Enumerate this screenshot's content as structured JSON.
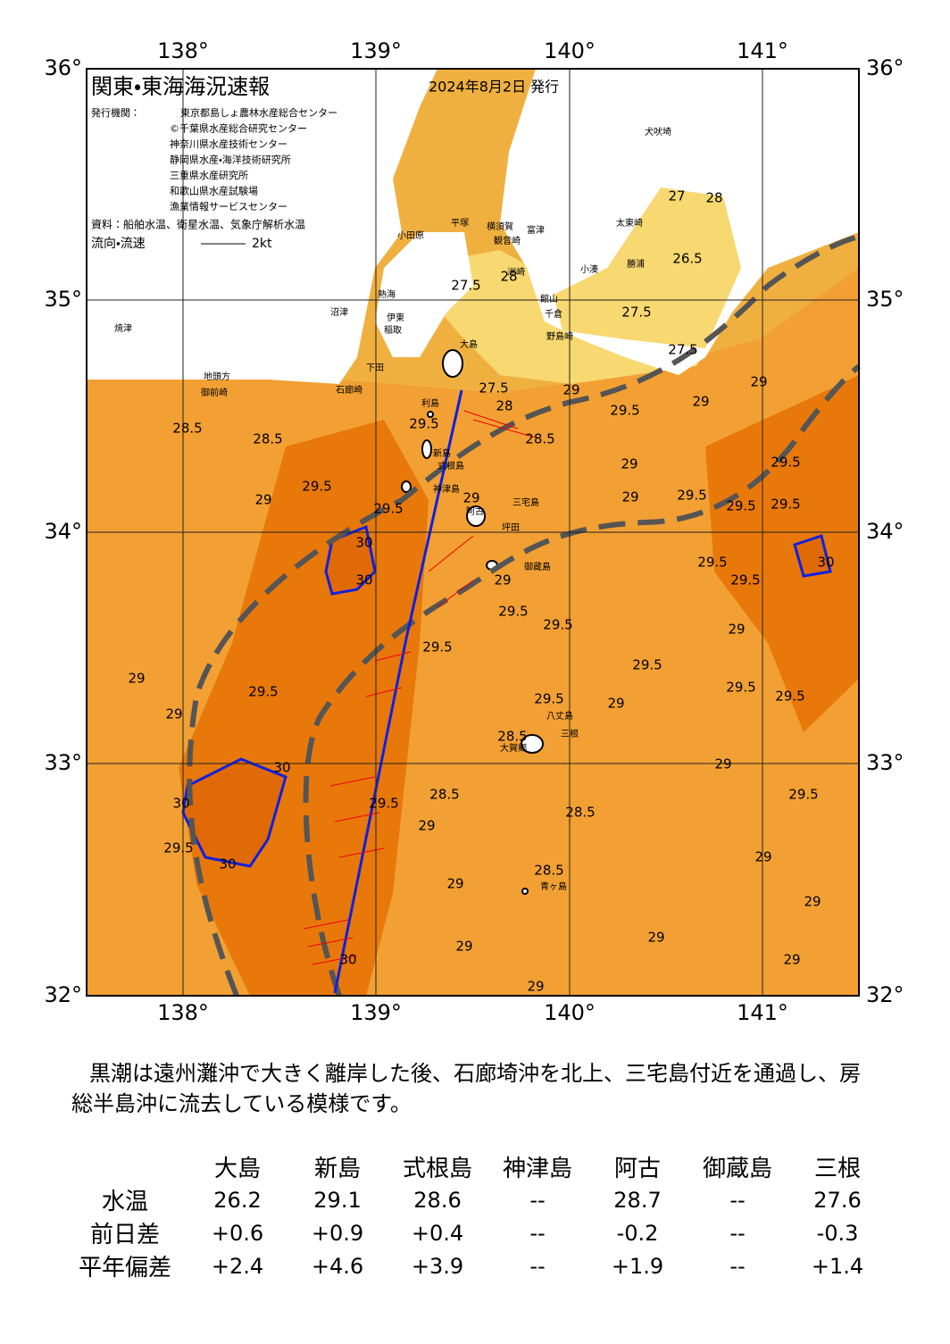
{
  "map": {
    "title": "関東・東海海況速報",
    "date": "2024年8月2日 発行",
    "publisher_label": "発行機関：",
    "publishers": [
      "東京都島しょ農林水産総合センター",
      "©千葉県水産総合研究センター",
      "神奈川県水産技術センター",
      "静岡県水産・海洋技術研究所",
      "三重県水産研究所",
      "和歌山県水産試験場",
      "漁業情報サービスセンター"
    ],
    "source": "資料：船舶水温、衛星水温、気象庁解析水温",
    "legend_label": "流向・流速",
    "legend_scale": "2kt",
    "lon_labels": [
      "138°",
      "139°",
      "140°",
      "141°"
    ],
    "lat_labels": [
      "36°",
      "35°",
      "34°",
      "33°",
      "32°"
    ],
    "place_names": [
      "犬吠埼",
      "太東崎",
      "勝浦",
      "小湊",
      "洲崎",
      "館山",
      "千倉",
      "野島崎",
      "富津",
      "横須賀",
      "観音崎",
      "平塚",
      "小田原",
      "熱海",
      "沼津",
      "伊東",
      "稲取",
      "下田",
      "石廊崎",
      "焼津",
      "地頭方",
      "御前崎",
      "利島",
      "新島",
      "式根島",
      "神津島",
      "三宅島",
      "阿古",
      "坪田",
      "御蔵島",
      "八丈島",
      "大賀郷",
      "三根",
      "青ヶ島",
      "大島"
    ],
    "contour_labels": [
      "27.5",
      "27.5",
      "27.5",
      "26.5",
      "27",
      "28",
      "28.5",
      "28.5",
      "28.5",
      "29.5",
      "29",
      "29",
      "29.5",
      "29",
      "29",
      "29.5",
      "29.5",
      "29.5",
      "29.5",
      "29",
      "29",
      "29.5",
      "29.5",
      "29.5",
      "29.5",
      "29.5",
      "29",
      "29.5",
      "29.5",
      "29.5",
      "29.5",
      "29",
      "29",
      "29.5",
      "29",
      "29",
      "29",
      "29",
      "29",
      "29",
      "29.5",
      "30",
      "29.5",
      "30",
      "30",
      "30",
      "30",
      "29.5",
      "29",
      "28.5",
      "29",
      "28.5",
      "28.5",
      "29",
      "29",
      "30",
      "30",
      "28",
      "28",
      "29.5",
      "27.5",
      "29.5",
      "29",
      "29",
      "28.5"
    ]
  },
  "summary": "黒潮は遠州灘沖で大きく離岸した後、石廊埼沖を北上、三宅島付近を通過し、房総半島沖に流去している模様です。",
  "table": {
    "columns": [
      "大島",
      "新島",
      "式根島",
      "神津島",
      "阿古",
      "御蔵島",
      "三根"
    ],
    "rows": [
      {
        "label": "水温",
        "cells": [
          "26.2",
          "29.1",
          "28.6",
          "--",
          "28.7",
          "--",
          "27.6"
        ]
      },
      {
        "label": "前日差",
        "cells": [
          "+0.6",
          "+0.9",
          "+0.4",
          "--",
          "-0.2",
          "--",
          "-0.3"
        ]
      },
      {
        "label": "平年偏差",
        "cells": [
          "+2.4",
          "+4.6",
          "+3.9",
          "--",
          "+1.9",
          "--",
          "+1.4"
        ]
      }
    ]
  }
}
